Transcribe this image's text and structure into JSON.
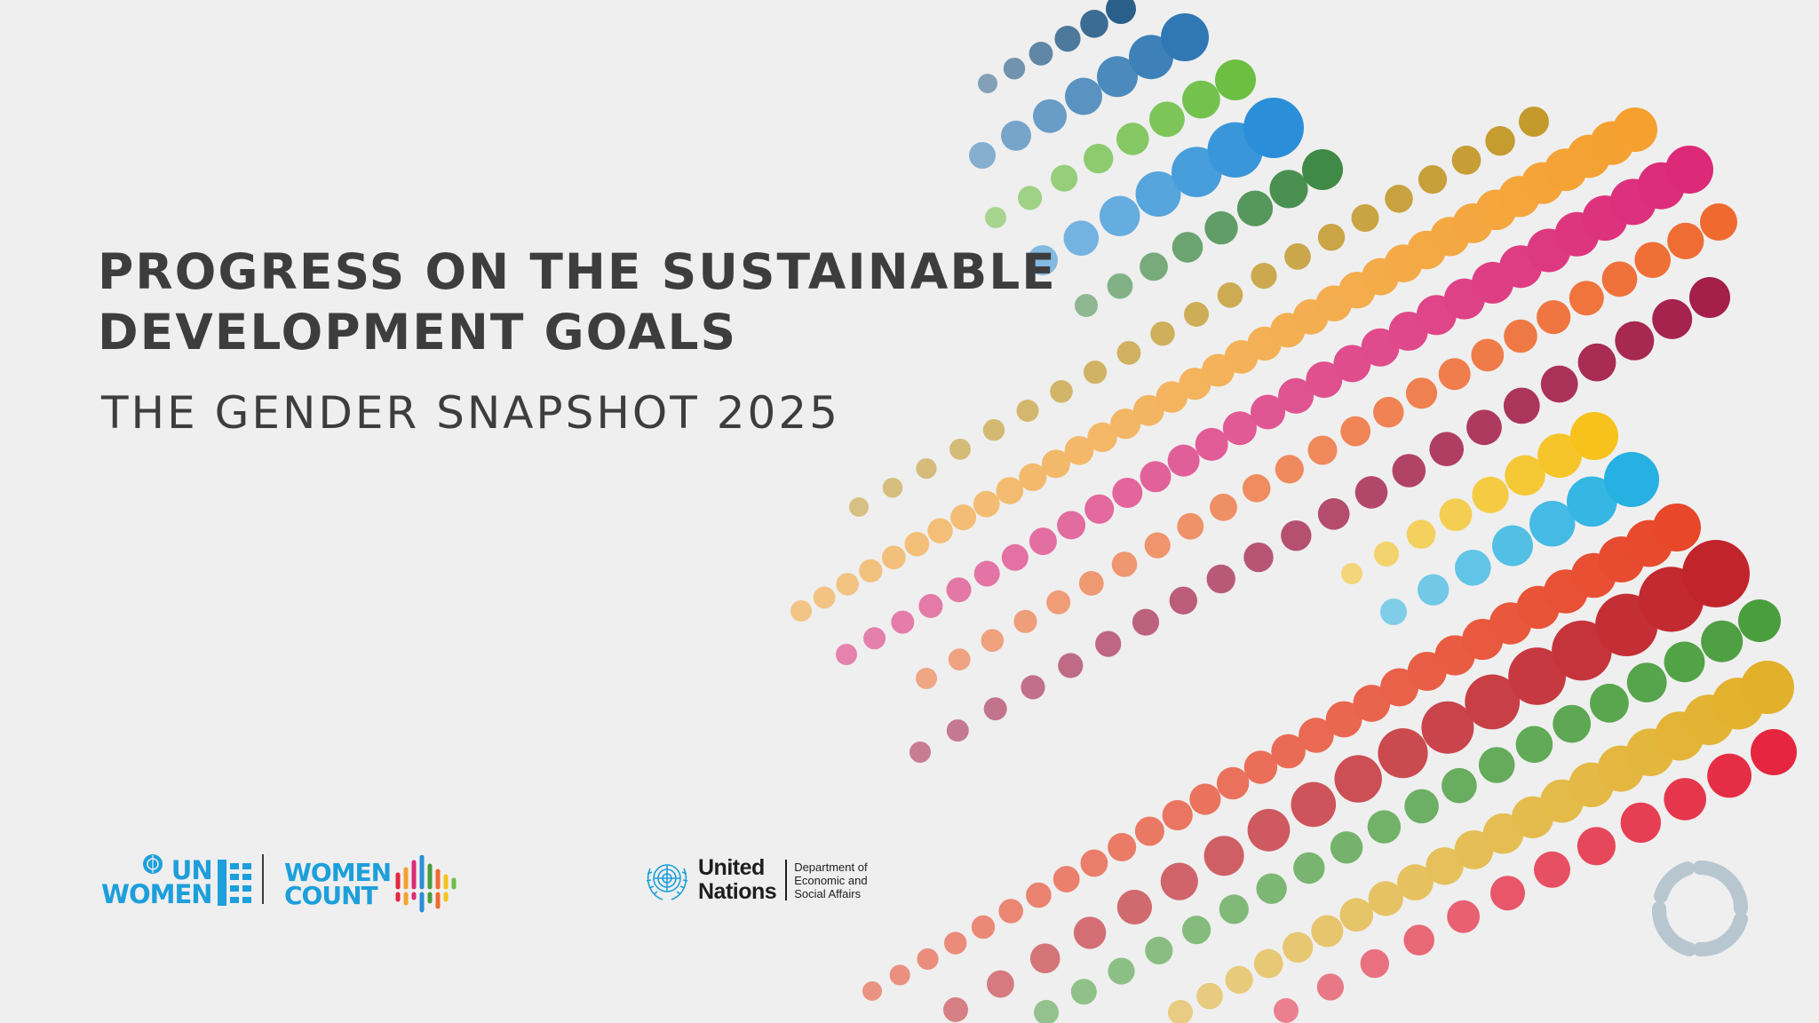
{
  "title": {
    "line1": "PROGRESS ON THE SUSTAINABLE",
    "line2": "DEVELOPMENT GOALS"
  },
  "subtitle": "THE GENDER SNAPSHOT 2025",
  "logos": {
    "un_women": {
      "line1": "UN",
      "line2": "WOMEN",
      "color": "#1d9fdb"
    },
    "women_count": {
      "line1": "WOMEN",
      "line2": "COUNT",
      "color": "#1d9fdb"
    },
    "united_nations": {
      "name_line1": "United",
      "name_line2": "Nations",
      "dept_line1": "Department of",
      "dept_line2": "Economic and",
      "dept_line3": "Social Affairs"
    }
  },
  "colors": {
    "background": "#efefef",
    "text": "#3d3d3d",
    "sdg_palette": [
      "#2a5f8a",
      "#2f78b4",
      "#6cbf43",
      "#2a8fd8",
      "#3f8a46",
      "#c49a2c",
      "#f5a02f",
      "#dc2a78",
      "#ef6a2f",
      "#a41f4a",
      "#f6c21b",
      "#26b1e2",
      "#e8472a",
      "#c2242c",
      "#4a9e3e",
      "#e2b02a",
      "#e5263e"
    ]
  },
  "icons": [
    "un-emblem-icon",
    "un-women-mark-icon",
    "women-count-bars-icon",
    "sdg-wheel-icon"
  ]
}
